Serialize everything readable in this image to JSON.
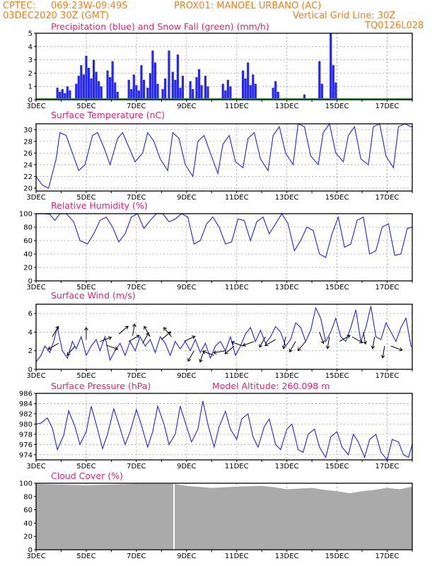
{
  "header": {
    "line1_left": "CPTEC:",
    "coords": "069:23W-09:49S",
    "location": "PROX01: MANOEL URBANO (AC)",
    "date": "03DEC2020 30Z (GMT)",
    "grid_note": "Vertical Grid Line: 30Z",
    "code": "TQ0126L028"
  },
  "colors": {
    "precip": "#2828e8",
    "snow": "#18a018",
    "line": "#3434e0",
    "cloud": "#aaaaaa",
    "wind_arrow": "#000000",
    "header": "#f08018",
    "title": "#e8207a"
  },
  "x_axis": {
    "start_day": 3,
    "end_day": 18,
    "labels": [
      {
        "day": 3,
        "text": "3DEC"
      },
      {
        "day": 5,
        "text": "5DEC"
      },
      {
        "day": 7,
        "text": "7DEC"
      },
      {
        "day": 9,
        "text": "9DEC"
      },
      {
        "day": 11,
        "text": "11DEC"
      },
      {
        "day": 13,
        "text": "13DEC"
      },
      {
        "day": 15,
        "text": "15DEC"
      },
      {
        "day": 17,
        "text": "17DEC"
      }
    ]
  },
  "chart_data": [
    {
      "id": "precip",
      "type": "bar",
      "title": "Precipitation (blue) and Snow Fall (green) (mm/h)",
      "ylim": [
        0,
        5
      ],
      "yticks": [
        0,
        1,
        2,
        3,
        4,
        5
      ],
      "snow_value": 0,
      "series": [
        {
          "name": "Precipitation",
          "x": [
            3.85,
            3.95,
            4.05,
            4.15,
            4.25,
            4.35,
            4.6,
            4.7,
            4.8,
            4.9,
            5.0,
            5.1,
            5.2,
            5.3,
            5.4,
            5.5,
            5.6,
            5.85,
            5.95,
            6.05,
            6.15,
            6.25,
            6.7,
            6.8,
            6.9,
            7.0,
            7.1,
            7.2,
            7.3,
            7.45,
            7.55,
            7.65,
            7.75,
            7.85,
            8.05,
            8.15,
            8.3,
            8.45,
            8.55,
            8.65,
            8.75,
            8.85,
            9.15,
            9.25,
            9.4,
            9.5,
            9.6,
            9.75,
            9.85,
            10.45,
            10.55,
            10.65,
            10.75,
            11.25,
            11.35,
            11.45,
            11.55,
            11.65,
            11.75,
            12.45,
            12.55,
            12.65,
            13.7,
            14.3,
            14.4,
            14.75,
            14.85,
            14.95
          ],
          "values": [
            0.9,
            0.6,
            0.8,
            0.5,
            1.0,
            0.7,
            1.2,
            1.8,
            2.6,
            1.9,
            3.3,
            2.4,
            1.6,
            3.0,
            2.1,
            1.4,
            1.0,
            2.2,
            1.7,
            2.9,
            1.3,
            0.6,
            1.5,
            0.8,
            1.9,
            1.1,
            0.7,
            2.6,
            1.5,
            0.9,
            2.0,
            3.7,
            2.8,
            1.2,
            0.8,
            1.6,
            3.7,
            2.1,
            1.5,
            3.4,
            0.9,
            1.8,
            1.4,
            0.8,
            1.7,
            2.3,
            1.1,
            1.8,
            1.0,
            1.2,
            0.7,
            1.5,
            1.0,
            2.2,
            1.6,
            2.8,
            1.1,
            1.9,
            1.2,
            0.9,
            1.4,
            0.6,
            0.4,
            2.9,
            1.2,
            5.0,
            2.6,
            1.3
          ]
        }
      ]
    },
    {
      "id": "temperature",
      "type": "line",
      "title": "Surface Temperature (nC)",
      "ylim": [
        19.5,
        31
      ],
      "yticks": [
        20,
        22,
        24,
        26,
        28,
        30
      ],
      "series": [
        {
          "name": "Temperature",
          "x": [
            3.0,
            3.25,
            3.5,
            3.8,
            3.95,
            4.2,
            4.45,
            4.7,
            4.95,
            5.25,
            5.45,
            5.7,
            5.95,
            6.25,
            6.45,
            6.7,
            6.95,
            7.25,
            7.45,
            7.7,
            7.95,
            8.25,
            8.45,
            8.7,
            8.95,
            9.25,
            9.45,
            9.7,
            9.95,
            10.25,
            10.45,
            10.7,
            10.95,
            11.25,
            11.45,
            11.7,
            11.95,
            12.25,
            12.45,
            12.7,
            12.95,
            13.25,
            13.45,
            13.7,
            13.95,
            14.25,
            14.45,
            14.7,
            14.95,
            15.25,
            15.45,
            15.7,
            15.95,
            16.25,
            16.45,
            16.7,
            16.95,
            17.25,
            17.45,
            17.7,
            17.95,
            18.0
          ],
          "values": [
            22.0,
            20.5,
            20.0,
            25.0,
            29.5,
            29.0,
            26.0,
            23.0,
            24.0,
            29.0,
            29.5,
            27.0,
            24.0,
            28.5,
            29.5,
            27.0,
            24.5,
            26.0,
            29.5,
            28.0,
            25.0,
            23.0,
            29.5,
            28.5,
            24.0,
            22.0,
            28.0,
            29.0,
            26.0,
            22.5,
            27.5,
            29.0,
            24.5,
            23.5,
            28.5,
            29.5,
            25.0,
            23.0,
            29.0,
            30.5,
            26.0,
            24.0,
            31.0,
            30.5,
            25.5,
            24.0,
            29.5,
            31.0,
            26.0,
            24.5,
            29.0,
            30.5,
            25.0,
            24.0,
            30.5,
            31.0,
            25.5,
            23.5,
            30.5,
            31.0,
            30.5,
            30.5
          ]
        }
      ]
    },
    {
      "id": "humidity",
      "type": "line",
      "title": "Relative Humidity (%)",
      "ylim": [
        0,
        100
      ],
      "yticks": [
        0,
        20,
        40,
        60,
        80,
        100
      ],
      "series": [
        {
          "name": "Humidity",
          "x": [
            3.0,
            3.3,
            3.55,
            3.75,
            3.95,
            4.2,
            4.5,
            4.75,
            5.05,
            5.3,
            5.55,
            5.8,
            6.05,
            6.3,
            6.55,
            6.8,
            7.05,
            7.3,
            7.55,
            7.8,
            8.05,
            8.3,
            8.55,
            8.8,
            9.05,
            9.3,
            9.55,
            9.8,
            10.05,
            10.3,
            10.55,
            10.8,
            11.05,
            11.3,
            11.55,
            11.8,
            12.05,
            12.3,
            12.55,
            12.8,
            13.05,
            13.3,
            13.55,
            13.8,
            14.05,
            14.3,
            14.55,
            14.8,
            15.05,
            15.3,
            15.55,
            15.8,
            16.05,
            16.3,
            16.55,
            16.8,
            17.05,
            17.3,
            17.55,
            17.8,
            18.0
          ],
          "values": [
            100,
            100,
            99,
            90,
            100,
            100,
            88,
            60,
            55,
            70,
            90,
            95,
            80,
            58,
            70,
            95,
            100,
            78,
            90,
            100,
            100,
            88,
            92,
            100,
            95,
            55,
            60,
            85,
            95,
            80,
            55,
            58,
            92,
            90,
            60,
            88,
            95,
            70,
            85,
            100,
            85,
            45,
            60,
            80,
            75,
            40,
            35,
            70,
            95,
            50,
            55,
            90,
            95,
            40,
            45,
            80,
            85,
            38,
            40,
            78,
            80
          ]
        }
      ]
    },
    {
      "id": "wind",
      "type": "line",
      "title": "Surface Wind (m/s)",
      "ylim": [
        0,
        7
      ],
      "yticks": [
        0,
        2,
        4,
        6
      ],
      "series": [
        {
          "name": "Wind speed",
          "x": [
            3.0,
            3.2,
            3.35,
            3.55,
            3.7,
            3.85,
            4.05,
            4.25,
            4.45,
            4.6,
            4.8,
            5.0,
            5.2,
            5.4,
            5.55,
            5.75,
            5.95,
            6.15,
            6.35,
            6.55,
            6.75,
            6.95,
            7.15,
            7.35,
            7.55,
            7.75,
            7.95,
            8.15,
            8.35,
            8.55,
            8.75,
            8.95,
            9.15,
            9.35,
            9.55,
            9.75,
            9.95,
            10.15,
            10.35,
            10.55,
            10.75,
            10.95,
            11.15,
            11.35,
            11.55,
            11.75,
            11.95,
            12.15,
            12.35,
            12.55,
            12.75,
            12.95,
            13.15,
            13.35,
            13.55,
            13.75,
            13.95,
            14.15,
            14.35,
            14.55,
            14.75,
            14.95,
            15.15,
            15.35,
            15.55,
            15.75,
            15.95,
            16.15,
            16.35,
            16.55,
            16.75,
            16.95,
            17.15,
            17.35,
            17.55,
            17.75,
            17.95,
            18.0
          ],
          "values": [
            0.8,
            1.5,
            2.5,
            1.8,
            3.0,
            4.5,
            2.0,
            1.2,
            3.0,
            2.2,
            3.5,
            1.5,
            2.5,
            3.2,
            2.0,
            3.5,
            1.0,
            2.0,
            2.8,
            1.5,
            3.0,
            2.0,
            3.5,
            2.5,
            3.2,
            1.8,
            3.5,
            2.8,
            1.5,
            3.0,
            2.2,
            3.0,
            2.0,
            3.2,
            1.8,
            2.8,
            1.2,
            2.5,
            3.0,
            2.0,
            3.5,
            1.5,
            2.5,
            3.8,
            4.5,
            3.0,
            4.2,
            2.8,
            3.5,
            4.6,
            4.0,
            2.5,
            3.2,
            5.0,
            4.5,
            3.0,
            4.2,
            6.6,
            5.5,
            3.0,
            4.0,
            5.5,
            3.5,
            3.0,
            4.5,
            6.4,
            3.0,
            4.5,
            6.8,
            3.5,
            3.2,
            5.0,
            4.0,
            3.0,
            4.5,
            5.5,
            2.5,
            2.4
          ]
        }
      ],
      "vectors": {
        "x": [
          3.65,
          3.9,
          4.55,
          5.0,
          5.55,
          5.8,
          6.3,
          6.7,
          6.85,
          7.25,
          7.55,
          8.0,
          8.4,
          8.9,
          9.3,
          9.7,
          10.1,
          10.55,
          10.9,
          11.25,
          11.7,
          12.15,
          12.55,
          12.95,
          13.35,
          13.75,
          14.3,
          14.7,
          15.1,
          15.6,
          16.05,
          16.5,
          16.9,
          17.15
        ],
        "speed": [
          3.5,
          2.8,
          2.5,
          3.2,
          3.0,
          2.6,
          3.8,
          3.0,
          3.6,
          2.8,
          3.5,
          3.2,
          3.5,
          3.0,
          2.0,
          2.0,
          1.5,
          2.0,
          2.5,
          2.5,
          3.0,
          3.5,
          3.2,
          3.5,
          3.0,
          3.0,
          4.0,
          3.5,
          3.0,
          3.5,
          4.0,
          3.5,
          2.5,
          2.5
        ],
        "dir": [
          -60,
          150,
          130,
          -90,
          -20,
          20,
          -40,
          -30,
          -80,
          -60,
          -120,
          -40,
          -130,
          -25,
          120,
          110,
          -160,
          170,
          140,
          -160,
          160,
          120,
          150,
          100,
          120,
          130,
          70,
          100,
          -30,
          30,
          80,
          100,
          100,
          20
        ]
      }
    },
    {
      "id": "pressure",
      "type": "line",
      "title": "Surface Pressure (hPa)",
      "annotation": "Model Altitude: 260.098 m",
      "ylim": [
        973,
        986
      ],
      "yticks": [
        974,
        976,
        978,
        980,
        982,
        984,
        986
      ],
      "series": [
        {
          "name": "Pressure",
          "x": [
            3.0,
            3.2,
            3.45,
            3.65,
            3.85,
            4.1,
            4.3,
            4.55,
            4.75,
            5.0,
            5.2,
            5.45,
            5.65,
            5.85,
            6.1,
            6.3,
            6.55,
            6.75,
            7.0,
            7.2,
            7.45,
            7.65,
            7.85,
            8.1,
            8.3,
            8.55,
            8.75,
            9.0,
            9.2,
            9.45,
            9.65,
            9.85,
            10.1,
            10.3,
            10.55,
            10.75,
            11.0,
            11.2,
            11.45,
            11.65,
            11.85,
            12.1,
            12.3,
            12.55,
            12.75,
            13.0,
            13.2,
            13.45,
            13.65,
            13.85,
            14.1,
            14.3,
            14.55,
            14.75,
            15.0,
            15.2,
            15.45,
            15.65,
            15.85,
            16.1,
            16.3,
            16.55,
            16.75,
            17.0,
            17.2,
            17.45,
            17.65,
            17.85,
            18.0
          ],
          "values": [
            980,
            980.2,
            981.2,
            979.2,
            975.0,
            977.8,
            982.6,
            979.5,
            976.0,
            978.5,
            983.5,
            979.0,
            975.2,
            978.0,
            983.0,
            980.0,
            976.0,
            978.5,
            982.8,
            979.8,
            975.5,
            978.5,
            983.5,
            980.0,
            976.0,
            978.0,
            983.5,
            979.5,
            976.5,
            979.0,
            984.5,
            980.0,
            975.5,
            979.5,
            982.5,
            979.0,
            977.0,
            981.0,
            982.0,
            977.5,
            975.5,
            979.5,
            981.0,
            976.0,
            975.0,
            979.0,
            980.0,
            975.0,
            974.5,
            978.0,
            979.0,
            975.5,
            973.5,
            977.5,
            978.5,
            975.5,
            974.0,
            978.0,
            976.5,
            973.5,
            977.0,
            978.0,
            974.5,
            973.0,
            977.0,
            976.5,
            974.0,
            973.5,
            976.0
          ]
        }
      ]
    },
    {
      "id": "cloud",
      "type": "area",
      "title": "Cloud Cover (%)",
      "ylim": [
        0,
        100
      ],
      "yticks": [
        0,
        20,
        40,
        60,
        80,
        100
      ],
      "gap_day": 8.5,
      "series": [
        {
          "name": "Cloud cover",
          "x": [
            3.0,
            4.0,
            5.0,
            6.0,
            7.0,
            8.0,
            8.5,
            9.0,
            10.0,
            11.0,
            12.0,
            12.5,
            13.0,
            14.0,
            14.5,
            15.0,
            15.5,
            16.0,
            16.5,
            17.0,
            17.5,
            18.0
          ],
          "values": [
            99,
            98,
            97,
            98,
            99,
            99,
            99,
            96,
            93,
            95,
            96,
            94,
            91,
            93,
            90,
            88,
            85,
            88,
            90,
            93,
            91,
            95
          ]
        }
      ]
    }
  ]
}
